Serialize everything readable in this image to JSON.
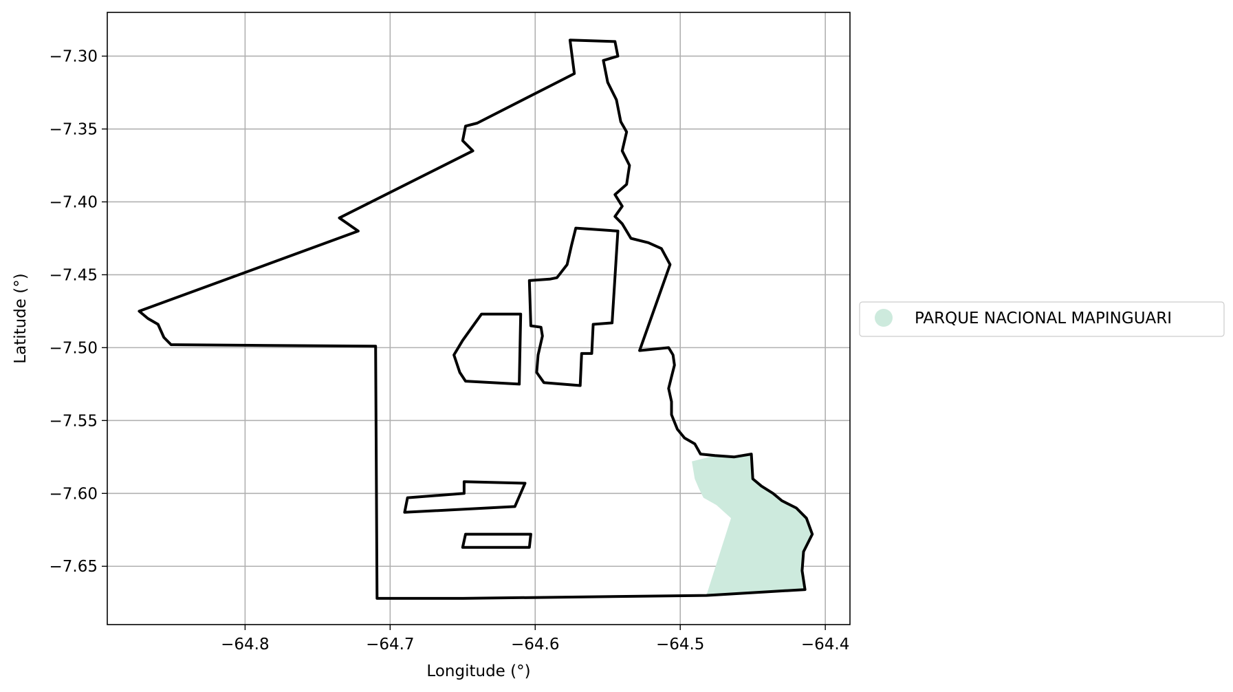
{
  "chart_data": {
    "type": "map",
    "xlabel": "Longitude (°)",
    "ylabel": "Latitude (°)",
    "xlim": [
      -64.895,
      -64.383
    ],
    "ylim": [
      -7.69,
      -7.27
    ],
    "grid": true,
    "legend_placement": "right",
    "x_ticks": [
      {
        "value": -64.8,
        "label": "−64.8"
      },
      {
        "value": -64.7,
        "label": "−64.7"
      },
      {
        "value": -64.6,
        "label": "−64.6"
      },
      {
        "value": -64.5,
        "label": "−64.5"
      },
      {
        "value": -64.4,
        "label": "−64.4"
      }
    ],
    "y_ticks": [
      {
        "value": -7.3,
        "label": "−7.30"
      },
      {
        "value": -7.35,
        "label": "−7.35"
      },
      {
        "value": -7.4,
        "label": "−7.40"
      },
      {
        "value": -7.45,
        "label": "−7.45"
      },
      {
        "value": -7.5,
        "label": "−7.50"
      },
      {
        "value": -7.55,
        "label": "−7.55"
      },
      {
        "value": -7.6,
        "label": "−7.60"
      },
      {
        "value": -7.65,
        "label": "−7.65"
      }
    ],
    "legend": [
      {
        "label": "PARQUE NACIONAL MAPINGUARI",
        "color": "#cdeadd"
      }
    ],
    "boundary": {
      "color": "#000000",
      "outer": [
        [
          -64.576,
          -7.289
        ],
        [
          -64.545,
          -7.29
        ],
        [
          -64.543,
          -7.3
        ],
        [
          -64.553,
          -7.303
        ],
        [
          -64.55,
          -7.318
        ],
        [
          -64.544,
          -7.33
        ],
        [
          -64.541,
          -7.345
        ],
        [
          -64.537,
          -7.352
        ],
        [
          -64.54,
          -7.365
        ],
        [
          -64.535,
          -7.375
        ],
        [
          -64.537,
          -7.388
        ],
        [
          -64.545,
          -7.395
        ],
        [
          -64.54,
          -7.403
        ],
        [
          -64.545,
          -7.41
        ],
        [
          -64.54,
          -7.415
        ],
        [
          -64.534,
          -7.425
        ],
        [
          -64.522,
          -7.428
        ],
        [
          -64.513,
          -7.432
        ],
        [
          -64.507,
          -7.443
        ],
        [
          -64.528,
          -7.502
        ],
        [
          -64.508,
          -7.5
        ],
        [
          -64.505,
          -7.505
        ],
        [
          -64.504,
          -7.512
        ],
        [
          -64.506,
          -7.52
        ],
        [
          -64.508,
          -7.528
        ],
        [
          -64.506,
          -7.537
        ],
        [
          -64.506,
          -7.546
        ],
        [
          -64.502,
          -7.556
        ],
        [
          -64.497,
          -7.562
        ],
        [
          -64.49,
          -7.566
        ],
        [
          -64.486,
          -7.573
        ],
        [
          -64.476,
          -7.574
        ],
        [
          -64.463,
          -7.575
        ],
        [
          -64.451,
          -7.573
        ],
        [
          -64.45,
          -7.59
        ],
        [
          -64.444,
          -7.595
        ],
        [
          -64.436,
          -7.6
        ],
        [
          -64.43,
          -7.605
        ],
        [
          -64.42,
          -7.61
        ],
        [
          -64.413,
          -7.617
        ],
        [
          -64.409,
          -7.628
        ],
        [
          -64.415,
          -7.64
        ],
        [
          -64.416,
          -7.653
        ],
        [
          -64.414,
          -7.666
        ],
        [
          -64.482,
          -7.67
        ],
        [
          -64.65,
          -7.672
        ],
        [
          -64.709,
          -7.672
        ],
        [
          -64.71,
          -7.499
        ],
        [
          -64.851,
          -7.498
        ],
        [
          -64.856,
          -7.493
        ],
        [
          -64.86,
          -7.484
        ],
        [
          -64.867,
          -7.48
        ],
        [
          -64.873,
          -7.475
        ],
        [
          -64.722,
          -7.42
        ],
        [
          -64.735,
          -7.411
        ],
        [
          -64.643,
          -7.365
        ],
        [
          -64.65,
          -7.358
        ],
        [
          -64.648,
          -7.348
        ],
        [
          -64.64,
          -7.346
        ],
        [
          -64.573,
          -7.312
        ],
        [
          -64.576,
          -7.289
        ]
      ],
      "holes": [
        [
          [
            -64.572,
            -7.418
          ],
          [
            -64.543,
            -7.42
          ],
          [
            -64.547,
            -7.483
          ],
          [
            -64.56,
            -7.484
          ],
          [
            -64.561,
            -7.504
          ],
          [
            -64.568,
            -7.504
          ],
          [
            -64.569,
            -7.526
          ],
          [
            -64.594,
            -7.524
          ],
          [
            -64.599,
            -7.517
          ],
          [
            -64.598,
            -7.505
          ],
          [
            -64.595,
            -7.492
          ],
          [
            -64.596,
            -7.486
          ],
          [
            -64.603,
            -7.485
          ],
          [
            -64.604,
            -7.454
          ],
          [
            -64.59,
            -7.453
          ],
          [
            -64.585,
            -7.452
          ],
          [
            -64.578,
            -7.443
          ],
          [
            -64.575,
            -7.43
          ],
          [
            -64.572,
            -7.418
          ]
        ],
        [
          [
            -64.637,
            -7.477
          ],
          [
            -64.61,
            -7.477
          ],
          [
            -64.611,
            -7.525
          ],
          [
            -64.648,
            -7.523
          ],
          [
            -64.652,
            -7.517
          ],
          [
            -64.656,
            -7.505
          ],
          [
            -64.65,
            -7.495
          ],
          [
            -64.637,
            -7.477
          ]
        ],
        [
          [
            -64.649,
            -7.592
          ],
          [
            -64.607,
            -7.593
          ],
          [
            -64.614,
            -7.609
          ],
          [
            -64.69,
            -7.613
          ],
          [
            -64.688,
            -7.603
          ],
          [
            -64.649,
            -7.6
          ]
        ],
        [
          [
            -64.648,
            -7.628
          ],
          [
            -64.603,
            -7.628
          ],
          [
            -64.604,
            -7.637
          ],
          [
            -64.65,
            -7.637
          ]
        ]
      ]
    },
    "highlight_region": {
      "name": "PARQUE NACIONAL MAPINGUARI",
      "color": "#cdeadd",
      "polygon": [
        [
          -64.492,
          -7.578
        ],
        [
          -64.476,
          -7.574
        ],
        [
          -64.463,
          -7.575
        ],
        [
          -64.451,
          -7.573
        ],
        [
          -64.45,
          -7.59
        ],
        [
          -64.444,
          -7.595
        ],
        [
          -64.436,
          -7.6
        ],
        [
          -64.43,
          -7.605
        ],
        [
          -64.42,
          -7.61
        ],
        [
          -64.413,
          -7.617
        ],
        [
          -64.409,
          -7.628
        ],
        [
          -64.415,
          -7.64
        ],
        [
          -64.416,
          -7.653
        ],
        [
          -64.414,
          -7.666
        ],
        [
          -64.482,
          -7.67
        ],
        [
          -64.465,
          -7.617
        ],
        [
          -64.475,
          -7.608
        ],
        [
          -64.484,
          -7.603
        ],
        [
          -64.487,
          -7.597
        ],
        [
          -64.49,
          -7.59
        ]
      ]
    }
  }
}
